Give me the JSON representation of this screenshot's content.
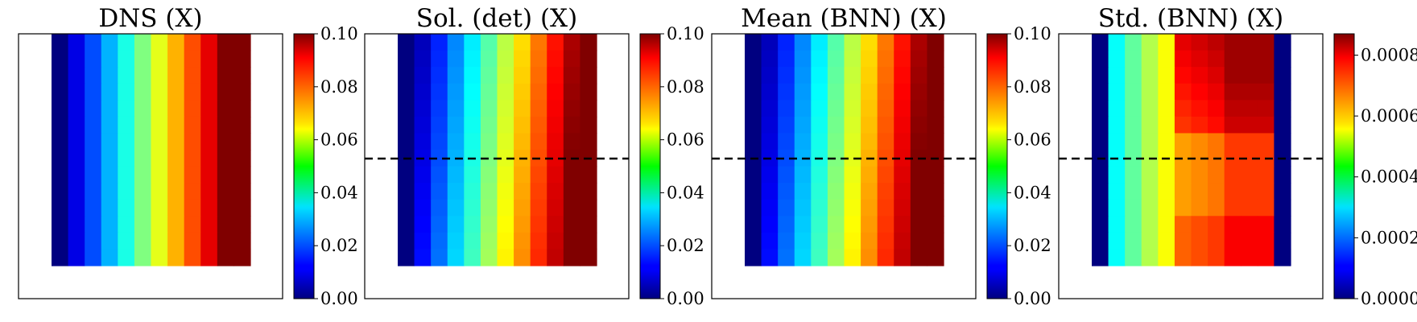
{
  "chart_data": [
    {
      "type": "heatmap",
      "title": "DNS (X)",
      "grid_size": [
        14,
        12
      ],
      "field": "linear_x",
      "x_values": [
        0.0,
        0.01,
        0.02,
        0.03,
        0.04,
        0.05,
        0.06,
        0.07,
        0.08,
        0.09,
        0.1,
        0.1
      ],
      "row_variation": false,
      "colorbar": {
        "range": [
          0.0,
          0.1
        ],
        "ticks": [
          "0.00",
          "0.02",
          "0.04",
          "0.06",
          "0.08",
          "0.10"
        ]
      },
      "dashed_line": false
    },
    {
      "type": "heatmap",
      "title": "Sol. (det) (X)",
      "grid_size": [
        14,
        12
      ],
      "field": "linear_x",
      "x_values": [
        0.0,
        0.01,
        0.02,
        0.03,
        0.04,
        0.05,
        0.06,
        0.07,
        0.08,
        0.09,
        0.1,
        0.1
      ],
      "row_variation": true,
      "colorbar": {
        "range": [
          0.0,
          0.1
        ],
        "ticks": [
          "0.00",
          "0.02",
          "0.04",
          "0.06",
          "0.08",
          "0.10"
        ]
      },
      "dashed_line": true
    },
    {
      "type": "heatmap",
      "title": "Mean (BNN) (X)",
      "grid_size": [
        14,
        12
      ],
      "field": "linear_x",
      "x_values": [
        0.0,
        0.01,
        0.02,
        0.03,
        0.04,
        0.05,
        0.06,
        0.07,
        0.08,
        0.09,
        0.1,
        0.1
      ],
      "row_variation": true,
      "colorbar": {
        "range": [
          0.0,
          0.1
        ],
        "ticks": [
          "0.00",
          "0.02",
          "0.04",
          "0.06",
          "0.08",
          "0.10"
        ]
      },
      "dashed_line": true
    },
    {
      "type": "heatmap",
      "title": "Std. (BNN) (X)",
      "grid_size": [
        14,
        12
      ],
      "field": "std",
      "colorbar": {
        "range": [
          0.0,
          0.00087
        ],
        "ticks": [
          "0.0000",
          "0.0002",
          "0.0004",
          "0.0006",
          "0.0008"
        ]
      },
      "dashed_line": true
    }
  ],
  "colormap": "jet"
}
